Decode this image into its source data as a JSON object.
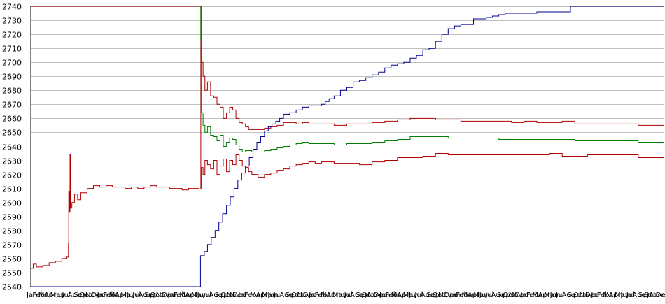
{
  "chart_data": {
    "type": "line",
    "title": "",
    "xlabel": "",
    "ylabel": "",
    "ylim": [
      2540,
      2740
    ],
    "y_ticks": [
      2540,
      2550,
      2560,
      2570,
      2580,
      2590,
      2600,
      2610,
      2620,
      2630,
      2640,
      2650,
      2660,
      2670,
      2680,
      2690,
      2700,
      2710,
      2720,
      2730,
      2740
    ],
    "x_tick_labels": [
      "Jan",
      "Feb",
      "Mar",
      "Apr",
      "May",
      "Jun",
      "Jul",
      "Aug",
      "Sep",
      "Oct",
      "Nov",
      "Dec"
    ],
    "grid": "horizontal",
    "legend": "none",
    "x_index_range": [
      0,
      100
    ],
    "series": [
      {
        "color": "#b00000",
        "points": [
          [
            0,
            2553
          ],
          [
            0.5,
            2556
          ],
          [
            1,
            2554
          ],
          [
            2,
            2555
          ],
          [
            3,
            2557
          ],
          [
            4,
            2558
          ],
          [
            5,
            2560
          ],
          [
            5.8,
            2561
          ],
          [
            6,
            2561
          ],
          [
            6.05,
            2571
          ],
          [
            6.1,
            2608
          ],
          [
            6.2,
            2593
          ],
          [
            6.3,
            2634
          ],
          [
            6.4,
            2596
          ],
          [
            6.6,
            2600
          ],
          [
            7,
            2606
          ],
          [
            7.5,
            2602
          ],
          [
            8,
            2607
          ],
          [
            9,
            2610
          ],
          [
            10,
            2612
          ],
          [
            11,
            2611
          ],
          [
            12,
            2612
          ],
          [
            13,
            2611
          ],
          [
            14,
            2611
          ],
          [
            15,
            2610
          ],
          [
            16,
            2611
          ],
          [
            17,
            2610
          ],
          [
            18,
            2611
          ],
          [
            19,
            2612
          ],
          [
            20,
            2611
          ],
          [
            21,
            2611
          ],
          [
            22,
            2610
          ],
          [
            23,
            2610
          ],
          [
            24,
            2609
          ],
          [
            25,
            2610
          ],
          [
            26,
            2610
          ],
          [
            26.7,
            2609
          ]
        ]
      },
      {
        "color": "#b00000",
        "points": [
          [
            0,
            2740
          ],
          [
            26.5,
            2740
          ],
          [
            26.9,
            2740
          ],
          [
            26.95,
            2610
          ],
          [
            27,
            2625
          ],
          [
            27.3,
            2620
          ],
          [
            27.6,
            2630
          ],
          [
            28,
            2627
          ],
          [
            28.5,
            2624
          ],
          [
            29,
            2630
          ],
          [
            29.5,
            2620
          ],
          [
            30,
            2626
          ],
          [
            30.5,
            2631
          ],
          [
            31,
            2622
          ],
          [
            31.5,
            2630
          ],
          [
            32,
            2627
          ],
          [
            32.5,
            2634
          ],
          [
            33,
            2630
          ],
          [
            33.5,
            2626
          ],
          [
            34,
            2625
          ],
          [
            34.5,
            2622
          ],
          [
            35,
            2620
          ],
          [
            36,
            2618
          ],
          [
            37,
            2620
          ],
          [
            38,
            2621
          ],
          [
            39,
            2623
          ],
          [
            40,
            2624
          ],
          [
            41,
            2626
          ],
          [
            42,
            2627
          ],
          [
            43,
            2628
          ],
          [
            44,
            2629
          ],
          [
            45,
            2628
          ],
          [
            46,
            2629
          ],
          [
            48,
            2628
          ],
          [
            50,
            2628
          ],
          [
            52,
            2627
          ],
          [
            54,
            2629
          ],
          [
            56,
            2630
          ],
          [
            58,
            2632
          ],
          [
            60,
            2632
          ],
          [
            62,
            2633
          ],
          [
            64,
            2635
          ],
          [
            66,
            2634
          ],
          [
            68,
            2634
          ],
          [
            70,
            2634
          ],
          [
            72,
            2634
          ],
          [
            74,
            2634
          ],
          [
            76,
            2634
          ],
          [
            78,
            2634
          ],
          [
            80,
            2634
          ],
          [
            82,
            2635
          ],
          [
            84,
            2633
          ],
          [
            86,
            2633
          ],
          [
            88,
            2634
          ],
          [
            90,
            2634
          ],
          [
            92,
            2634
          ],
          [
            94,
            2634
          ],
          [
            96,
            2632
          ],
          [
            98,
            2632
          ],
          [
            100,
            2632
          ]
        ]
      },
      {
        "color": "#b00000",
        "points": [
          [
            26.95,
            2740
          ],
          [
            27,
            2700
          ],
          [
            27.3,
            2690
          ],
          [
            27.6,
            2680
          ],
          [
            28,
            2686
          ],
          [
            28.5,
            2676
          ],
          [
            29,
            2675
          ],
          [
            29.5,
            2670
          ],
          [
            30,
            2668
          ],
          [
            30.5,
            2660
          ],
          [
            31,
            2664
          ],
          [
            31.5,
            2668
          ],
          [
            32,
            2666
          ],
          [
            32.5,
            2660
          ],
          [
            33,
            2657
          ],
          [
            33.5,
            2656
          ],
          [
            34,
            2654
          ],
          [
            34.5,
            2652
          ],
          [
            35,
            2652
          ],
          [
            36,
            2652
          ],
          [
            37,
            2653
          ],
          [
            38,
            2654
          ],
          [
            39,
            2655
          ],
          [
            40,
            2657
          ],
          [
            41,
            2657
          ],
          [
            42,
            2656
          ],
          [
            43,
            2657
          ],
          [
            44,
            2656
          ],
          [
            46,
            2656
          ],
          [
            48,
            2655
          ],
          [
            50,
            2656
          ],
          [
            52,
            2656
          ],
          [
            54,
            2657
          ],
          [
            56,
            2658
          ],
          [
            58,
            2659
          ],
          [
            60,
            2660
          ],
          [
            62,
            2660
          ],
          [
            64,
            2659
          ],
          [
            66,
            2659
          ],
          [
            68,
            2658
          ],
          [
            70,
            2658
          ],
          [
            72,
            2658
          ],
          [
            74,
            2658
          ],
          [
            76,
            2657
          ],
          [
            78,
            2658
          ],
          [
            80,
            2657
          ],
          [
            82,
            2657
          ],
          [
            84,
            2658
          ],
          [
            86,
            2656
          ],
          [
            88,
            2656
          ],
          [
            90,
            2656
          ],
          [
            92,
            2656
          ],
          [
            94,
            2656
          ],
          [
            96,
            2655
          ],
          [
            98,
            2655
          ],
          [
            100,
            2655
          ]
        ]
      },
      {
        "color": "#008000",
        "points": [
          [
            26.9,
            2740
          ],
          [
            26.95,
            2716
          ],
          [
            27,
            2664
          ],
          [
            27.3,
            2655
          ],
          [
            27.6,
            2650
          ],
          [
            28,
            2654
          ],
          [
            28.5,
            2648
          ],
          [
            29,
            2647
          ],
          [
            29.5,
            2644
          ],
          [
            30,
            2648
          ],
          [
            30.5,
            2640
          ],
          [
            31,
            2643
          ],
          [
            31.5,
            2646
          ],
          [
            32,
            2645
          ],
          [
            32.5,
            2641
          ],
          [
            33,
            2638
          ],
          [
            33.5,
            2636
          ],
          [
            34,
            2637
          ],
          [
            35,
            2636
          ],
          [
            36,
            2636
          ],
          [
            37,
            2637
          ],
          [
            38,
            2638
          ],
          [
            39,
            2639
          ],
          [
            40,
            2640
          ],
          [
            41,
            2641
          ],
          [
            42,
            2642
          ],
          [
            43,
            2643
          ],
          [
            44,
            2642
          ],
          [
            46,
            2642
          ],
          [
            48,
            2641
          ],
          [
            50,
            2642
          ],
          [
            52,
            2642
          ],
          [
            54,
            2643
          ],
          [
            56,
            2644
          ],
          [
            58,
            2645
          ],
          [
            60,
            2647
          ],
          [
            62,
            2647
          ],
          [
            64,
            2647
          ],
          [
            66,
            2646
          ],
          [
            68,
            2646
          ],
          [
            70,
            2646
          ],
          [
            72,
            2646
          ],
          [
            74,
            2645
          ],
          [
            76,
            2645
          ],
          [
            78,
            2645
          ],
          [
            80,
            2645
          ],
          [
            82,
            2645
          ],
          [
            84,
            2645
          ],
          [
            86,
            2644
          ],
          [
            88,
            2644
          ],
          [
            90,
            2644
          ],
          [
            92,
            2644
          ],
          [
            94,
            2644
          ],
          [
            96,
            2643
          ],
          [
            98,
            2643
          ],
          [
            100,
            2643
          ]
        ]
      },
      {
        "color": "#000090",
        "points": [
          [
            0,
            2540
          ],
          [
            26.8,
            2540
          ],
          [
            26.9,
            2562
          ],
          [
            27.5,
            2565
          ],
          [
            28,
            2570
          ],
          [
            28.6,
            2575
          ],
          [
            29.2,
            2580
          ],
          [
            29.8,
            2586
          ],
          [
            30.4,
            2592
          ],
          [
            31,
            2598
          ],
          [
            31.6,
            2604
          ],
          [
            32.2,
            2610
          ],
          [
            32.8,
            2616
          ],
          [
            33.4,
            2621
          ],
          [
            34,
            2626
          ],
          [
            34.6,
            2632
          ],
          [
            35.2,
            2638
          ],
          [
            35.8,
            2643
          ],
          [
            36.4,
            2647
          ],
          [
            37,
            2651
          ],
          [
            37.6,
            2654
          ],
          [
            38.2,
            2656
          ],
          [
            38.8,
            2658
          ],
          [
            39.4,
            2660
          ],
          [
            40,
            2663
          ],
          [
            41,
            2664
          ],
          [
            42,
            2666
          ],
          [
            43,
            2668
          ],
          [
            44,
            2669
          ],
          [
            45,
            2669
          ],
          [
            46,
            2670
          ],
          [
            46.6,
            2672
          ],
          [
            47.2,
            2674
          ],
          [
            48,
            2676
          ],
          [
            49,
            2680
          ],
          [
            50,
            2682
          ],
          [
            51,
            2686
          ],
          [
            52,
            2687
          ],
          [
            53,
            2689
          ],
          [
            54,
            2691
          ],
          [
            55,
            2693
          ],
          [
            56,
            2696
          ],
          [
            57,
            2698
          ],
          [
            58,
            2699
          ],
          [
            59,
            2700
          ],
          [
            60,
            2703
          ],
          [
            61,
            2705
          ],
          [
            62,
            2709
          ],
          [
            63,
            2710
          ],
          [
            64,
            2715
          ],
          [
            65,
            2720
          ],
          [
            66,
            2724
          ],
          [
            67,
            2726
          ],
          [
            68,
            2727
          ],
          [
            69,
            2727
          ],
          [
            70,
            2731
          ],
          [
            71,
            2731
          ],
          [
            72,
            2732
          ],
          [
            73,
            2733
          ],
          [
            74,
            2734
          ],
          [
            75,
            2735
          ],
          [
            76,
            2735
          ],
          [
            78,
            2735
          ],
          [
            80,
            2736
          ],
          [
            82,
            2736
          ],
          [
            84,
            2736
          ],
          [
            85,
            2736
          ],
          [
            85.3,
            2740
          ],
          [
            88,
            2740
          ],
          [
            100,
            2740
          ]
        ]
      }
    ]
  }
}
